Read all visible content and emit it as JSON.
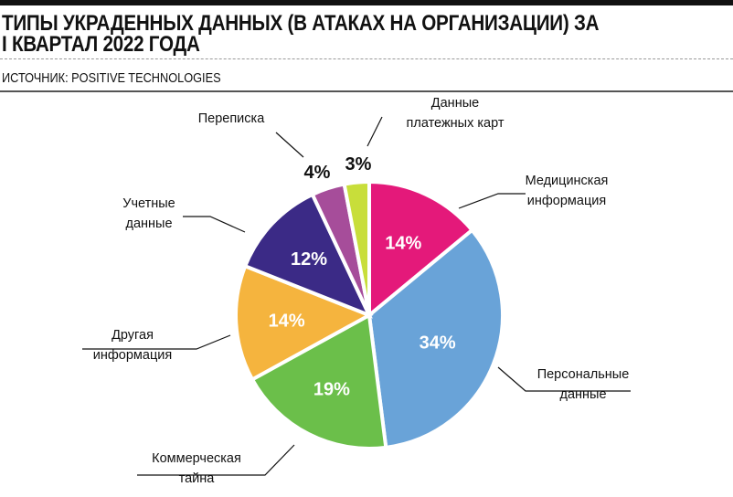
{
  "header": {
    "title_line1": "ТИПЫ УКРАДЕННЫХ ДАННЫХ (В АТАКАХ НА ОРГАНИЗАЦИИ) ЗА",
    "title_line2": "I КВАРТАЛ 2022 ГОДА",
    "source": "ИСТОЧНИК: POSITIVE TECHNOLOGIES"
  },
  "chart_data": {
    "type": "pie",
    "title": "Типы украденных данных (в атаках на организации) за I квартал 2022 года",
    "start": "12 o'clock, clockwise",
    "slices": [
      {
        "label_lines": [
          "Медицинская",
          "информация"
        ],
        "value": 14,
        "display": "14%",
        "color": "#e4197a"
      },
      {
        "label_lines": [
          "Персональные",
          "данные"
        ],
        "value": 34,
        "display": "34%",
        "color": "#69a3d8"
      },
      {
        "label_lines": [
          "Коммерческая",
          "тайна"
        ],
        "value": 19,
        "display": "19%",
        "color": "#6bbf4a"
      },
      {
        "label_lines": [
          "Другая",
          "информация"
        ],
        "value": 14,
        "display": "14%",
        "color": "#f5b43e"
      },
      {
        "label_lines": [
          "Учетные",
          "данные"
        ],
        "value": 12,
        "display": "12%",
        "color": "#3b2a86"
      },
      {
        "label_lines": [
          "Переписка"
        ],
        "value": 4,
        "display": "4%",
        "color": "#a64d9a"
      },
      {
        "label_lines": [
          "Данные",
          "платежных карт"
        ],
        "value": 3,
        "display": "3%",
        "color": "#c8de3a"
      }
    ]
  }
}
